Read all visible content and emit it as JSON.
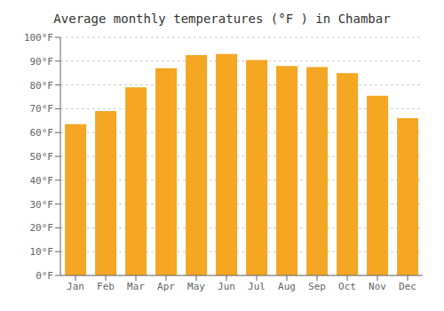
{
  "chart_data": {
    "type": "bar",
    "title": "Average monthly temperatures (°F ) in Chambar",
    "categories": [
      "Jan",
      "Feb",
      "Mar",
      "Apr",
      "May",
      "Jun",
      "Jul",
      "Aug",
      "Sep",
      "Oct",
      "Nov",
      "Dec"
    ],
    "values": [
      63.5,
      69.0,
      79.0,
      87.0,
      92.5,
      93.0,
      90.5,
      88.0,
      87.5,
      85.0,
      75.5,
      66.0
    ],
    "color": "#F5A623",
    "ylim": [
      0,
      100
    ],
    "yticks": [
      {
        "value": 0,
        "label": "0°F"
      },
      {
        "value": 10,
        "label": "10°F"
      },
      {
        "value": 20,
        "label": "20°F"
      },
      {
        "value": 30,
        "label": "30°F"
      },
      {
        "value": 40,
        "label": "40°F"
      },
      {
        "value": 50,
        "label": "50°F"
      },
      {
        "value": 60,
        "label": "60°F"
      },
      {
        "value": 70,
        "label": "70°F"
      },
      {
        "value": 80,
        "label": "80°F"
      },
      {
        "value": 90,
        "label": "90°F"
      },
      {
        "value": 100,
        "label": "100°F"
      }
    ],
    "grid": true
  }
}
